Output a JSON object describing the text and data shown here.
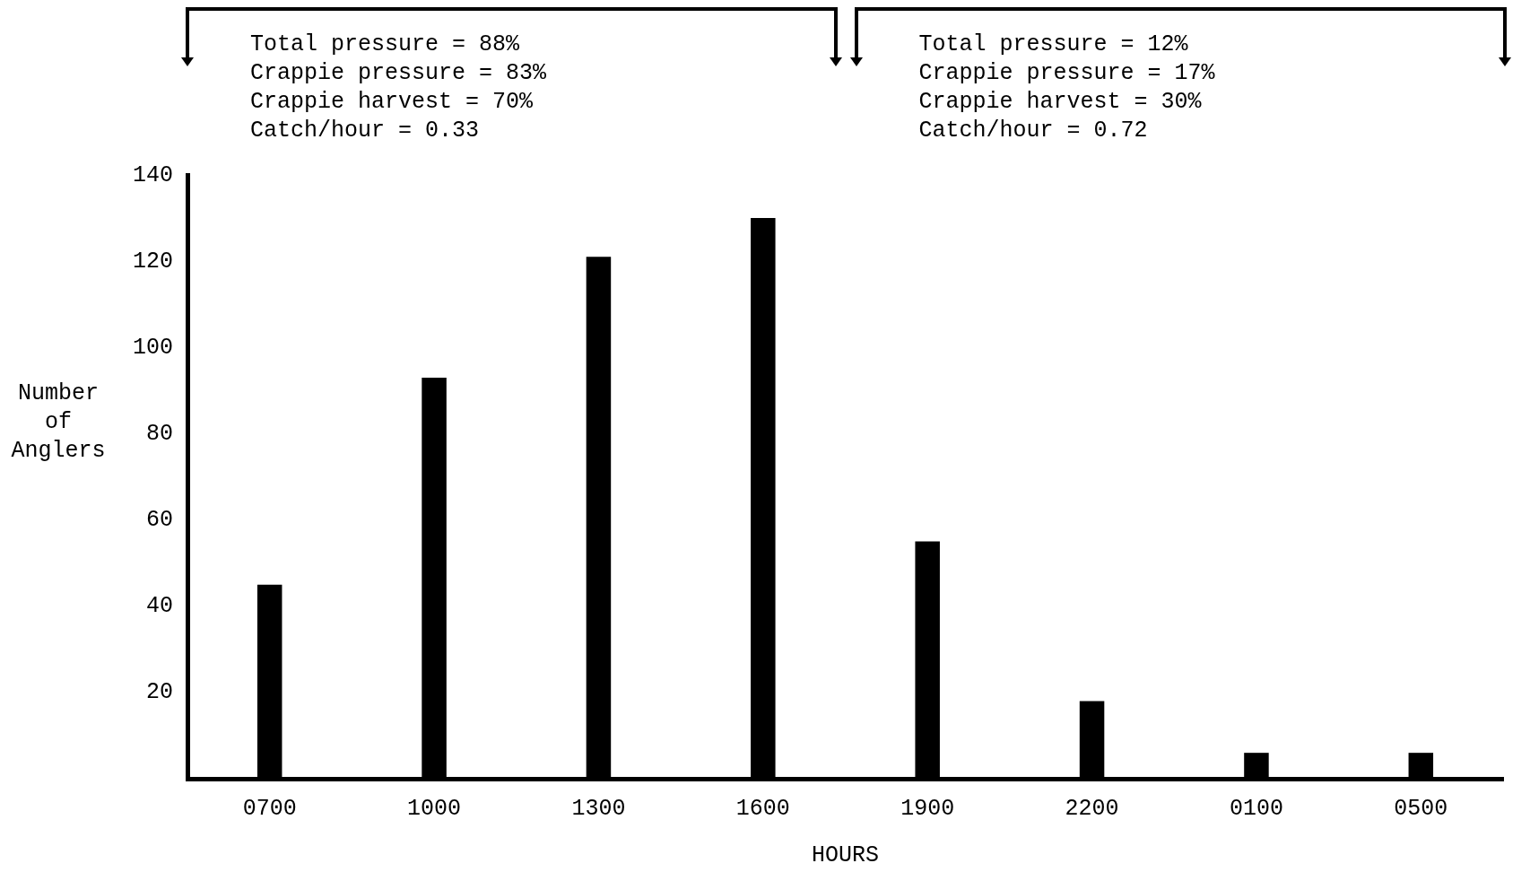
{
  "chart_data": {
    "type": "bar",
    "categories": [
      "0700",
      "1000",
      "1300",
      "1600",
      "1900",
      "2200",
      "0100",
      "0500"
    ],
    "values": [
      45,
      93,
      121,
      130,
      55,
      18,
      6,
      6
    ],
    "color": "#000000",
    "xlabel": "HOURS",
    "ylabel": "Number of Anglers",
    "ylim": [
      0,
      140
    ],
    "yticks": [
      20,
      40,
      60,
      80,
      100,
      120,
      140
    ],
    "grid": false,
    "legend": false,
    "annotations": [
      "Total pressure = 88%",
      "Crappie pressure = 83%",
      "Crappie harvest = 70%",
      "Catch/hour = 0.33",
      "Total pressure = 12%",
      "Crappie pressure = 17%",
      "Crappie harvest = 30%",
      "Catch/hour = 0.72"
    ]
  }
}
